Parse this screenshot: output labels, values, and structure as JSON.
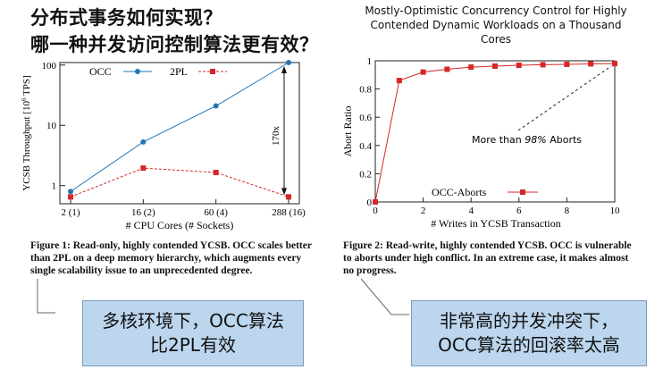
{
  "slide": {
    "title_line1": "分布式事务如何实现？",
    "title_line2": "哪一种并发访问控制算法更有效？",
    "paper_title": "Mostly-Optimistic Concurrency Control for Highly Contended Dynamic Workloads on a Thousand Cores"
  },
  "captions": {
    "fig1": "Figure 1:  Read-only, highly contended YCSB. OCC scales better than 2PL on a deep memory hierarchy, which augments every single scalability issue to an unprecedented degree.",
    "fig2": "Figure 2:  Read-write, highly contended YCSB. OCC is vulnerable to aborts under high conflict. In an extreme case, it makes almost no progress."
  },
  "callouts": {
    "left_line1": "多核环境下，OCC算法",
    "left_line2": "比2PL有效",
    "right_line1": "非常高的并发冲突下，",
    "right_line2": "OCC算法的回滚率太高"
  },
  "colors": {
    "occ": "#1f77b4",
    "twopl": "#d62728",
    "callout_bg": "#bcd6ee"
  },
  "chart_data": [
    {
      "type": "line",
      "xlabel": "# CPU Cores (# Sockets)",
      "ylabel": "YCSB Throughput [10^6 TPS]",
      "ylabel_tex": "YCSB Throughput [10",
      "ylabel_exp": "6",
      "ylabel_tail": " TPS]",
      "y_scale": "log",
      "ylim": [
        0.5,
        110
      ],
      "categories": [
        "2 (1)",
        "16 (2)",
        "60 (4)",
        "288 (16)"
      ],
      "yticks": [
        1,
        10,
        100
      ],
      "ytick_labels": [
        "1",
        "10",
        "100"
      ],
      "series": [
        {
          "name": "OCC",
          "values": [
            0.8,
            5.3,
            21,
            110
          ]
        },
        {
          "name": "2PL",
          "values": [
            0.65,
            1.95,
            1.65,
            0.65
          ]
        }
      ],
      "annotation": "170x",
      "legend": "top-left",
      "grid": false
    },
    {
      "type": "line",
      "xlabel": "# Writes in YCSB Transaction",
      "ylabel": "Abort Ratio",
      "xlim": [
        0,
        10
      ],
      "ylim": [
        0,
        1
      ],
      "xticks": [
        0,
        2,
        4,
        6,
        8,
        10
      ],
      "yticks": [
        0,
        0.2,
        0.4,
        0.6,
        0.8,
        1
      ],
      "ytick_labels": [
        "0",
        "0.2",
        "0.4",
        "0.6",
        "0.8",
        "1"
      ],
      "series": [
        {
          "name": "OCC-Aborts",
          "x": [
            0,
            1,
            2,
            3,
            4,
            5,
            6,
            7,
            8,
            9,
            10
          ],
          "values": [
            0,
            0.86,
            0.92,
            0.94,
            0.955,
            0.962,
            0.968,
            0.972,
            0.975,
            0.978,
            0.98
          ]
        }
      ],
      "annotation": "More than 98% Aborts",
      "annotation_pre": "More than ",
      "annotation_em": "98%",
      "annotation_post": " Aborts",
      "legend": "bottom-center",
      "grid": false
    }
  ]
}
